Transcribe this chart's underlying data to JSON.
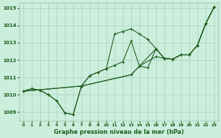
{
  "title": "Graphe pression niveau de la mer (hPa)",
  "bg_color": "#cceedd",
  "grid_color": "#aaccbb",
  "line_color": "#1a5c1a",
  "xlim": [
    -0.5,
    23.5
  ],
  "ylim": [
    1008.5,
    1015.3
  ],
  "xtick_labels": [
    "0",
    "1",
    "2",
    "3",
    "4",
    "5",
    "6",
    "7",
    "8",
    "9",
    "10",
    "11",
    "12",
    "13",
    "14",
    "15",
    "16",
    "17",
    "18",
    "19",
    "20",
    "21",
    "22",
    "23"
  ],
  "yticks": [
    1009,
    1010,
    1011,
    1012,
    1013,
    1014,
    1015
  ],
  "ytick_labels": [
    "1009",
    "1010",
    "1011",
    "1012",
    "1013",
    "1014",
    "1015"
  ],
  "s1_x": [
    0,
    1,
    2,
    3,
    4,
    5,
    6,
    7,
    8,
    9,
    10,
    11,
    12,
    13,
    14,
    15,
    16,
    17,
    18,
    19,
    20,
    21,
    22,
    23
  ],
  "s1_y": [
    1010.2,
    1010.35,
    1010.25,
    1010.0,
    1009.65,
    1008.95,
    1008.85,
    1010.5,
    1011.1,
    1011.3,
    1011.5,
    1013.5,
    1013.65,
    1013.8,
    1013.5,
    1013.2,
    1012.65,
    1012.1,
    1012.05,
    1012.3,
    1012.3,
    1012.85,
    1014.1,
    1015.05
  ],
  "s2_x": [
    0,
    1,
    2,
    3,
    4,
    5,
    6,
    7,
    8,
    9,
    10,
    11,
    12,
    13,
    14,
    15,
    16,
    17,
    18,
    19,
    20,
    21,
    22,
    23
  ],
  "s2_y": [
    1010.2,
    1010.35,
    1010.25,
    1010.0,
    1009.65,
    1008.95,
    1008.85,
    1010.5,
    1011.1,
    1011.3,
    1011.5,
    1011.7,
    1011.9,
    1013.1,
    1011.65,
    1011.55,
    1012.65,
    1012.1,
    1012.05,
    1012.3,
    1012.3,
    1012.85,
    1014.1,
    1015.05
  ],
  "s3_x": [
    0,
    7,
    13,
    14,
    16,
    17,
    18,
    19,
    20,
    21,
    22,
    23
  ],
  "s3_y": [
    1010.2,
    1010.5,
    1011.15,
    1011.65,
    1012.2,
    1012.1,
    1012.05,
    1012.3,
    1012.3,
    1012.85,
    1014.1,
    1015.05
  ],
  "s4_x": [
    0,
    7,
    13,
    14,
    16,
    17,
    18,
    19,
    20,
    21,
    22,
    23
  ],
  "s4_y": [
    1010.2,
    1010.5,
    1011.15,
    1011.65,
    1012.65,
    1012.1,
    1012.05,
    1012.3,
    1012.3,
    1012.85,
    1014.1,
    1015.05
  ]
}
